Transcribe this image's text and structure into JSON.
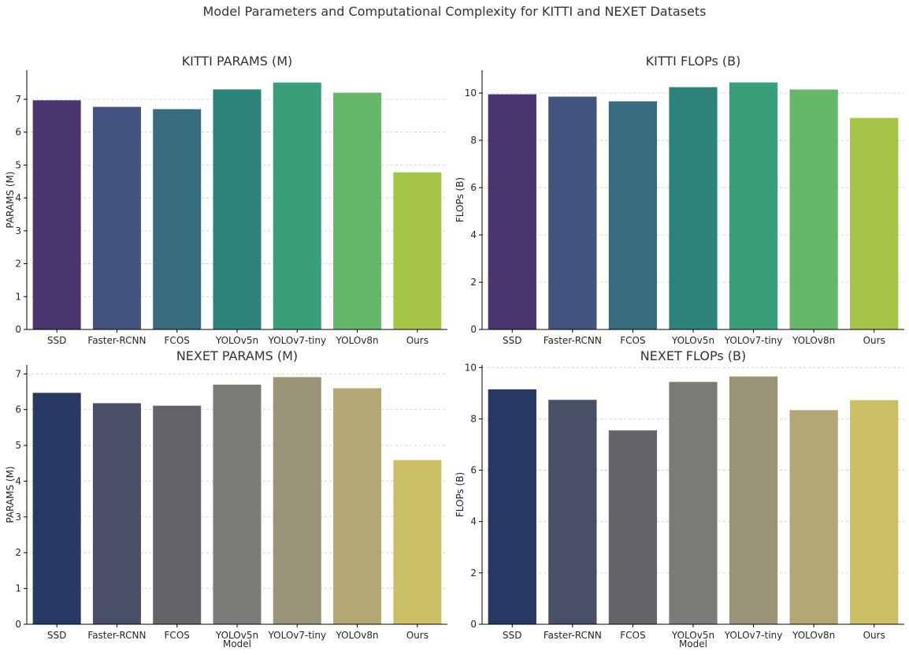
{
  "suptitle": "Model Parameters and Computational Complexity for KITTI and NEXET Datasets",
  "chart_data": [
    {
      "type": "bar",
      "title": "KITTI PARAMS (M)",
      "xlabel": "",
      "ylabel": "PARAMS (M)",
      "categories": [
        "SSD",
        "Faster-RCNN",
        "FCOS",
        "YOLOv5n",
        "YOLOv7-tiny",
        "YOLOv8n",
        "Ours"
      ],
      "values": [
        6.97,
        6.77,
        6.7,
        7.3,
        7.51,
        7.2,
        4.78
      ],
      "ylim": [
        0,
        7.886
      ],
      "yticks": [
        "0",
        "1",
        "2",
        "3",
        "4",
        "5",
        "6",
        "7"
      ],
      "grid": "y",
      "colors": [
        "#4b3571",
        "#43557e",
        "#376c7f",
        "#2d837a",
        "#3a9e79",
        "#66b868",
        "#a3c444"
      ]
    },
    {
      "type": "bar",
      "title": "KITTI FLOPs (B)",
      "xlabel": "",
      "ylabel": "FLOPs (B)",
      "categories": [
        "SSD",
        "Faster-RCNN",
        "FCOS",
        "YOLOv5n",
        "YOLOv7-tiny",
        "YOLOv8n",
        "Ours"
      ],
      "values": [
        9.95,
        9.85,
        9.65,
        10.25,
        10.45,
        10.15,
        8.95
      ],
      "ylim": [
        0,
        10.97
      ],
      "yticks": [
        "0",
        "2",
        "4",
        "6",
        "8",
        "10"
      ],
      "grid": "y",
      "colors": [
        "#4b3571",
        "#43557e",
        "#376c7f",
        "#2d837a",
        "#3a9e79",
        "#66b868",
        "#a3c444"
      ]
    },
    {
      "type": "bar",
      "title": "NEXET PARAMS (M)",
      "xlabel": "Model",
      "ylabel": "PARAMS (M)",
      "categories": [
        "SSD",
        "Faster-RCNN",
        "FCOS",
        "YOLOv5n",
        "YOLOv7-tiny",
        "YOLOv8n",
        "Ours"
      ],
      "values": [
        6.47,
        6.18,
        6.11,
        6.7,
        6.91,
        6.6,
        4.59
      ],
      "ylim": [
        0,
        7.25
      ],
      "yticks": [
        "0",
        "1",
        "2",
        "3",
        "4",
        "5",
        "6",
        "7"
      ],
      "grid": "y",
      "colors": [
        "#273862",
        "#484f66",
        "#626469",
        "#7c7b76",
        "#999478",
        "#b3a875",
        "#cbbf66"
      ]
    },
    {
      "type": "bar",
      "title": "NEXET FLOPs (B)",
      "xlabel": "Model",
      "ylabel": "FLOPs (B)",
      "categories": [
        "SSD",
        "Faster-RCNN",
        "FCOS",
        "YOLOv5n",
        "YOLOv7-tiny",
        "YOLOv8n",
        "Ours"
      ],
      "values": [
        9.15,
        8.74,
        7.55,
        9.44,
        9.65,
        8.34,
        8.73
      ],
      "ylim": [
        0,
        10.1
      ],
      "yticks": [
        "0",
        "2",
        "4",
        "6",
        "8",
        "10"
      ],
      "grid": "y",
      "colors": [
        "#273862",
        "#484f66",
        "#626469",
        "#7c7b76",
        "#999478",
        "#b3a875",
        "#cbbf66"
      ]
    }
  ]
}
